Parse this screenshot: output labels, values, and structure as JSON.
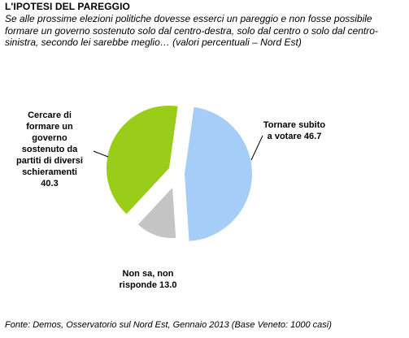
{
  "title": "L'IPOTESI DEL PAREGGIO",
  "subtitle": "Se alle prossime elezioni politiche dovesse esserci un pareggio e non fosse possibile formare un governo sostenuto solo dal centro-destra, solo dal centro o solo dal centro-sinistra, secondo lei sarebbe meglio… (valori percentuali – Nord Est)",
  "footer": "Fonte: Demos, Osservatorio sul Nord Est, Gennaio 2013 (Base Veneto: 1000 casi)",
  "chart_data": {
    "type": "pie",
    "categories": [
      "Tornare subito a votare",
      "Non sa, non risponde",
      "Cercare di formare un governo sostenuto da partiti di diversi schieramenti"
    ],
    "values": [
      46.7,
      13.0,
      40.3
    ],
    "colors": [
      "#a6cdf7",
      "#c4c4c4",
      "#9acc1a"
    ],
    "exploded": true,
    "labels": [
      {
        "lines": [
          "Tornare subito",
          "a votare 46.7"
        ]
      },
      {
        "lines": [
          "Non sa, non",
          "risponde 13.0"
        ]
      },
      {
        "lines": [
          "Cercare di",
          "formare un",
          "governo",
          "sostenuto da",
          "partiti di diversi",
          "schieramenti",
          "40.3"
        ]
      }
    ]
  }
}
